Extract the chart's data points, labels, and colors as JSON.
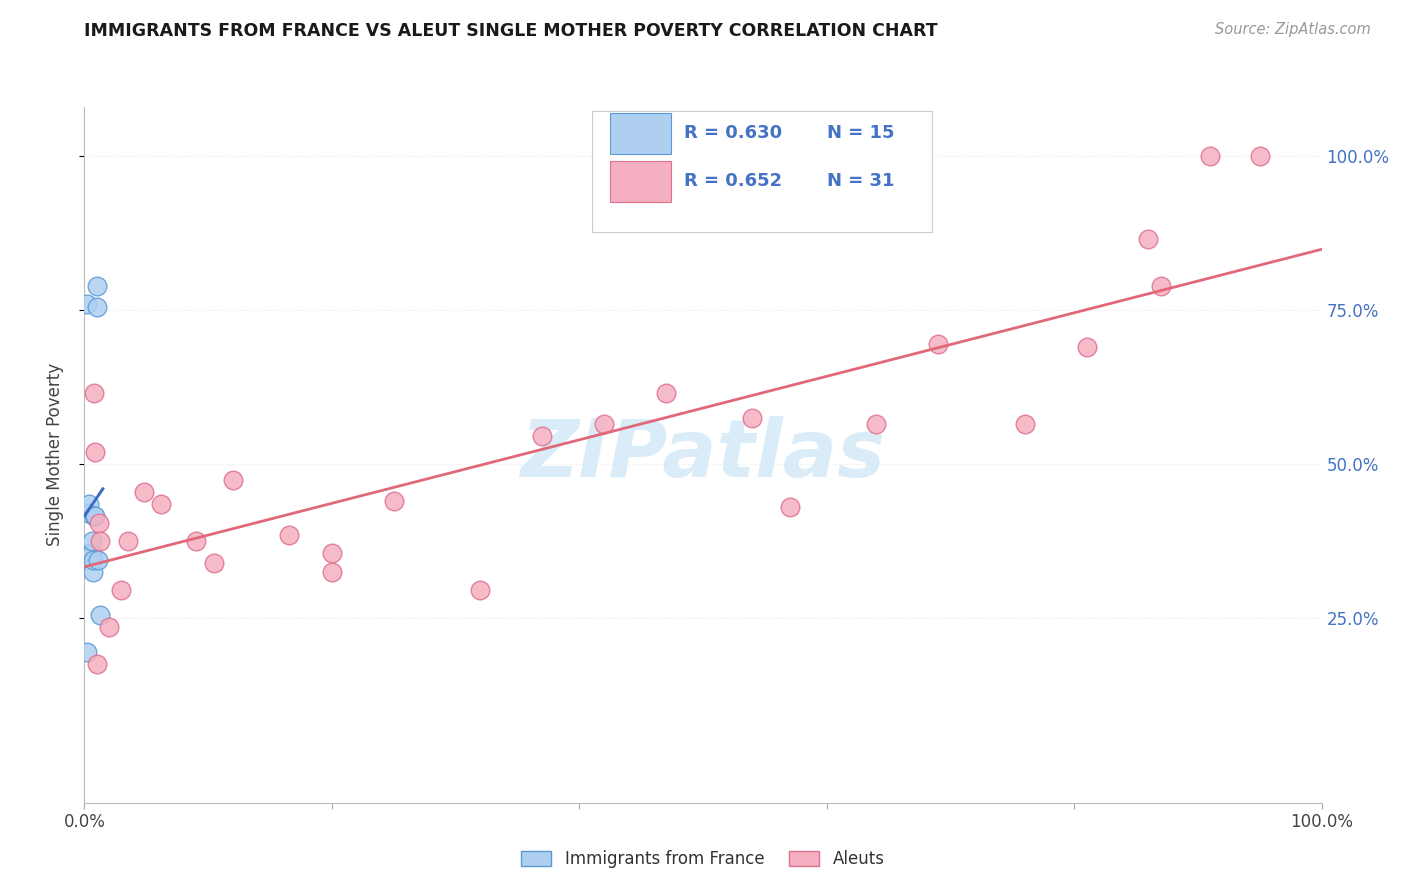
{
  "title": "IMMIGRANTS FROM FRANCE VS ALEUT SINGLE MOTHER POVERTY CORRELATION CHART",
  "source": "Source: ZipAtlas.com",
  "ylabel": "Single Mother Poverty",
  "xlim": [
    0,
    1.0
  ],
  "ylim": [
    -0.05,
    1.08
  ],
  "plot_ylim": [
    0,
    1.0
  ],
  "xtick_positions": [
    0.0,
    0.2,
    0.4,
    0.6,
    0.8,
    1.0
  ],
  "xticklabels": [
    "0.0%",
    "",
    "",
    "",
    "",
    "100.0%"
  ],
  "ytick_positions": [
    0.25,
    0.5,
    0.75,
    1.0
  ],
  "ytick_labels_right": [
    "25.0%",
    "50.0%",
    "75.0%",
    "100.0%"
  ],
  "blue_color": "#aecff0",
  "blue_edge": "#5b9bd5",
  "pink_color": "#f4afc0",
  "pink_edge": "#e07090",
  "trend_blue": "#3a6bbf",
  "trend_pink": "#e06878",
  "legend_label1": "Immigrants from France",
  "legend_label2": "Aleuts",
  "france_x": [
    0.002,
    0.002,
    0.003,
    0.004,
    0.005,
    0.006,
    0.006,
    0.007,
    0.007,
    0.008,
    0.009,
    0.01,
    0.01,
    0.011,
    0.013
  ],
  "france_y": [
    0.195,
    0.76,
    0.42,
    0.435,
    0.355,
    0.355,
    0.375,
    0.325,
    0.345,
    0.415,
    0.415,
    0.755,
    0.79,
    0.345,
    0.255
  ],
  "aleut_x": [
    0.008,
    0.009,
    0.01,
    0.012,
    0.013,
    0.02,
    0.03,
    0.035,
    0.048,
    0.062,
    0.09,
    0.105,
    0.12,
    0.165,
    0.2,
    0.2,
    0.25,
    0.32,
    0.37,
    0.42,
    0.47,
    0.54,
    0.57,
    0.64,
    0.69,
    0.76,
    0.81,
    0.86,
    0.87,
    0.91,
    0.95
  ],
  "aleut_y": [
    0.615,
    0.52,
    0.175,
    0.405,
    0.375,
    0.235,
    0.295,
    0.375,
    0.455,
    0.435,
    0.375,
    0.34,
    0.475,
    0.385,
    0.355,
    0.325,
    0.44,
    0.295,
    0.545,
    0.565,
    0.615,
    0.575,
    0.43,
    0.565,
    0.695,
    0.565,
    0.69,
    0.865,
    0.79,
    1.0,
    1.0
  ],
  "watermark_text": "ZIPatlas",
  "watermark_color": "#cce4f7",
  "background_color": "#ffffff",
  "grid_color": "#e8e8e8",
  "right_tick_color": "#4472c4",
  "legend_text_color": "#4472c4"
}
